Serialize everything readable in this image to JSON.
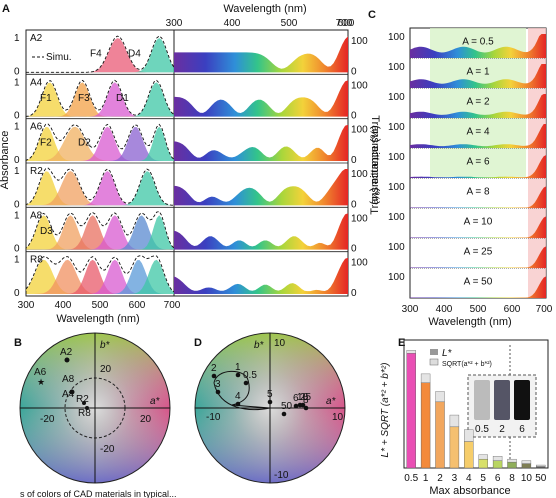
{
  "figure": {
    "panel_letters": [
      "A",
      "B",
      "C",
      "D",
      "E"
    ],
    "panel_A": {
      "top_axis_label": "Wavelength (nm)",
      "top_ticks": [
        "300",
        "400",
        "500",
        "600",
        "700"
      ],
      "bottom_axis_label": "Wavelength (nm)",
      "bottom_ticks": [
        "300",
        "400",
        "500",
        "600",
        "700"
      ],
      "left_axis_label": "Absorbance",
      "left_ticks": [
        "1",
        "0"
      ],
      "right_axis_label": "Transmittance (%)",
      "right_ticks": [
        "100",
        "0"
      ],
      "rows": [
        {
          "sample": "A2",
          "labels": [
            "F4",
            "D4"
          ],
          "legend": "Simu."
        },
        {
          "sample": "A4",
          "labels": [
            "F1",
            "F3",
            "D1"
          ]
        },
        {
          "sample": "A6",
          "labels": [
            "F2",
            "D2"
          ]
        },
        {
          "sample": "R2",
          "labels": []
        },
        {
          "sample": "A8",
          "labels": [
            "D3"
          ]
        },
        {
          "sample": "R8",
          "labels": []
        }
      ]
    },
    "panel_B": {
      "axis_a": "a*",
      "axis_b": "b*",
      "ticks": [
        "20",
        "-20",
        "20",
        "-20"
      ],
      "points": [
        "A2",
        "A4",
        "A6",
        "A8",
        "R2",
        "R8"
      ]
    },
    "panel_C": {
      "y_axis_label": "Transmittance (%)",
      "x_axis_label": "Wavelength (nm)",
      "x_ticks": [
        "300",
        "400",
        "500",
        "600",
        "700"
      ],
      "y_tick": "100",
      "rows": [
        "A = 0.5",
        "A = 1",
        "A = 2",
        "A = 4",
        "A = 6",
        "A = 8",
        "A = 10",
        "A = 25",
        "A = 50"
      ]
    },
    "panel_D": {
      "axis_a": "a*",
      "axis_b": "b*",
      "ticks": [
        "10",
        "-10",
        "10",
        "-10"
      ],
      "points": [
        "0.5",
        "1",
        "2",
        "3",
        "4",
        "5",
        "6",
        "8",
        "10",
        "25",
        "50"
      ]
    },
    "panel_E": {
      "y_axis_label": "L* + SQRT (a*² + b*²)",
      "x_axis_label": "Max absorbance",
      "legend": [
        "L*",
        "SQRT(a*² + b*²)"
      ],
      "inset_labels": [
        "0.5",
        "2",
        "6"
      ]
    },
    "caption_fragment": "s of colors of CAD materials in typical..."
  },
  "chart_data": {
    "type": "bar",
    "categories": [
      "0.5",
      "1",
      "2",
      "3",
      "4",
      "5",
      "6",
      "8",
      "10",
      "50"
    ],
    "series": [
      {
        "name": "L*",
        "values": [
          78,
          58,
          45,
          28,
          18,
          6,
          5,
          4,
          3,
          1
        ]
      },
      {
        "name": "SQRT(a*² + b*²)",
        "values": [
          2,
          6,
          7,
          8,
          8,
          3,
          3,
          2,
          2,
          1
        ]
      }
    ],
    "bar_colors": [
      "#e94fb4",
      "#f38a3b",
      "#f2a75e",
      "#f5c070",
      "#f6cd6a",
      "#d8e06a",
      "#b9d562",
      "#8fae5a",
      "#7f7f55",
      "#555555"
    ],
    "xlabel": "Max absorbance",
    "ylabel": "L* + SQRT (a*² + b*²)",
    "ylim": [
      0,
      85
    ]
  }
}
